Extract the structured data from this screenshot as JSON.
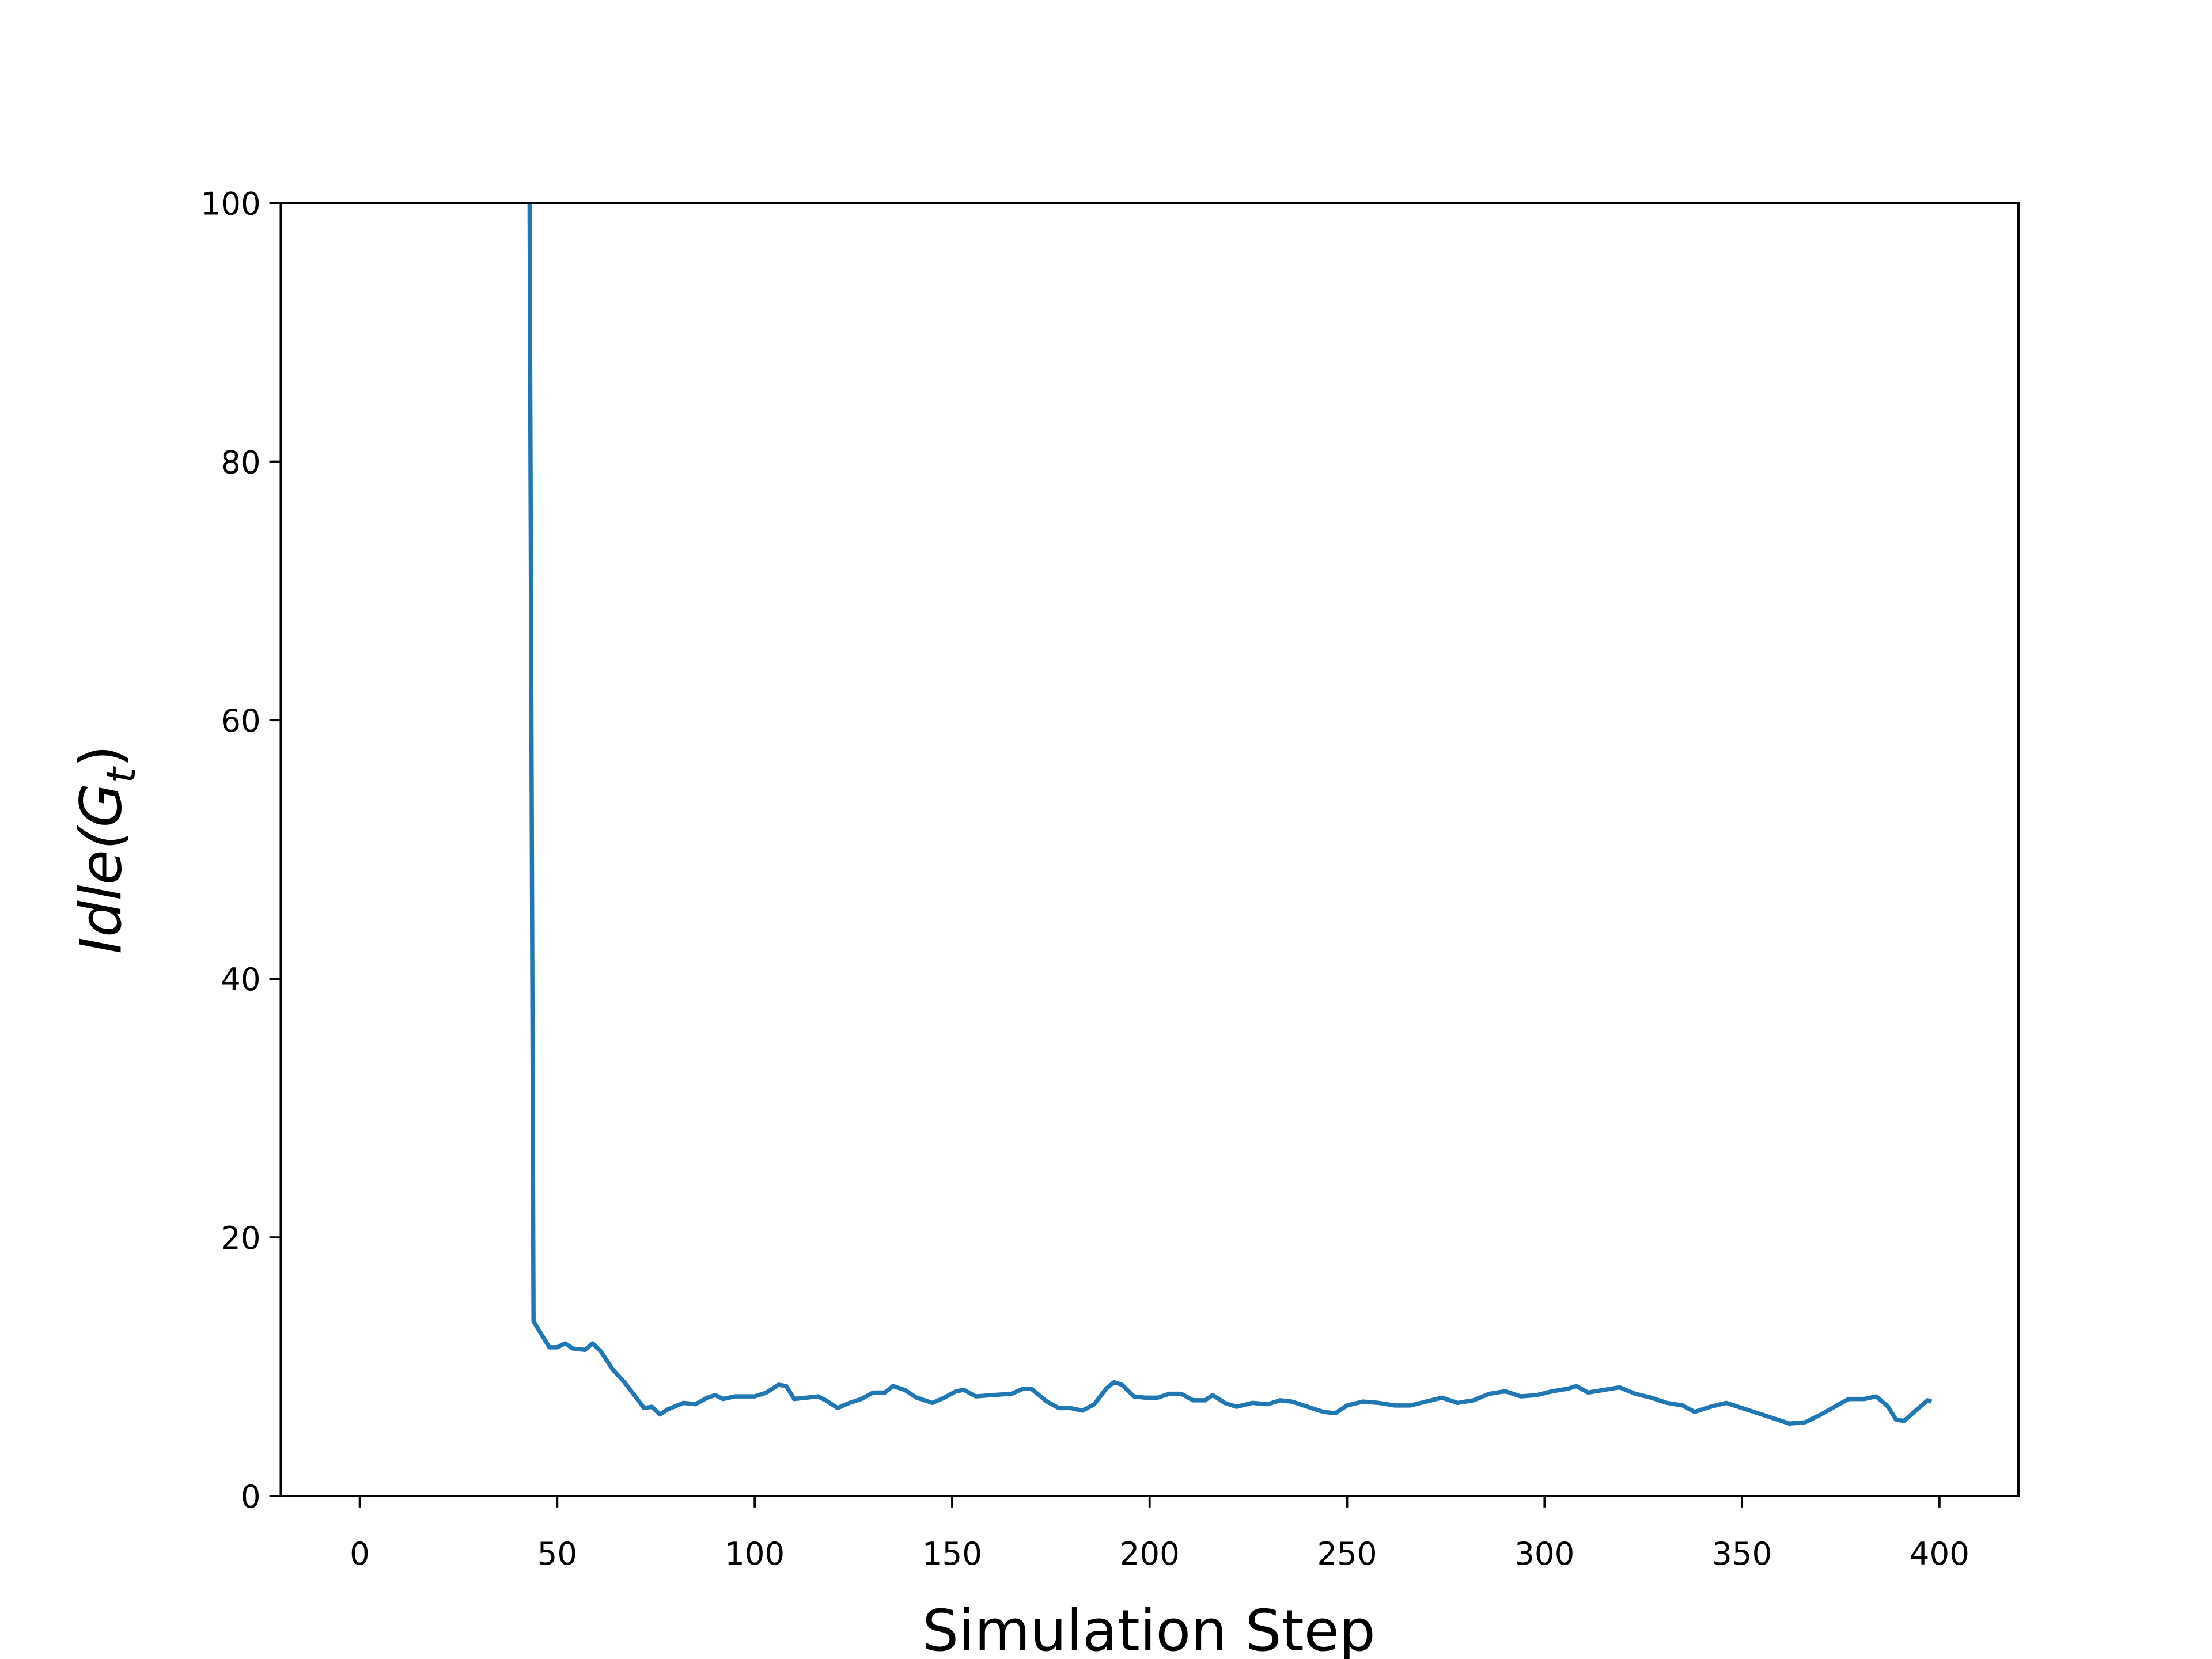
{
  "chart_data": {
    "type": "line",
    "xlabel": "Simulation Step",
    "ylabel": {
      "text": "Idle(G",
      "sub": "t",
      "close": ")"
    },
    "xlim": [
      -20,
      420
    ],
    "xticks": [
      0,
      50,
      100,
      150,
      200,
      250,
      300,
      350,
      400
    ],
    "ylim": [
      0,
      100
    ],
    "yticks": [
      0,
      20,
      40,
      60,
      80,
      100
    ],
    "series": [
      {
        "color": "#1f77b4",
        "x": [
          43,
          44,
          46,
          48,
          50,
          52,
          54,
          57,
          59,
          61,
          64,
          67,
          70,
          72,
          74,
          76,
          78,
          82,
          85,
          88,
          90,
          92,
          95,
          100,
          103,
          106,
          108,
          110,
          113,
          116,
          118,
          121,
          124,
          127,
          130,
          133,
          135,
          138,
          141,
          145,
          148,
          151,
          153,
          156,
          160,
          165,
          168,
          170,
          174,
          177,
          180,
          183,
          186,
          189,
          191,
          193,
          196,
          199,
          202,
          205,
          208,
          211,
          214,
          216,
          219,
          222,
          226,
          230,
          233,
          236,
          240,
          244,
          247,
          250,
          254,
          258,
          262,
          266,
          270,
          274,
          278,
          282,
          286,
          290,
          294,
          298,
          302,
          306,
          308,
          311,
          315,
          319,
          323,
          327,
          331,
          335,
          338,
          342,
          346,
          350,
          354,
          358,
          362,
          366,
          370,
          374,
          377,
          381,
          384,
          387,
          389,
          391,
          394,
          397,
          398
        ],
        "values": [
          100,
          13.5,
          12.5,
          11.5,
          11.5,
          11.8,
          11.4,
          11.3,
          11.8,
          11.2,
          9.8,
          8.8,
          7.6,
          6.8,
          6.9,
          6.3,
          6.7,
          7.2,
          7.1,
          7.6,
          7.8,
          7.5,
          7.7,
          7.7,
          8.0,
          8.6,
          8.5,
          7.5,
          7.6,
          7.7,
          7.4,
          6.8,
          7.2,
          7.5,
          8.0,
          8.0,
          8.5,
          8.2,
          7.6,
          7.2,
          7.6,
          8.1,
          8.2,
          7.7,
          7.8,
          7.9,
          8.3,
          8.3,
          7.3,
          6.8,
          6.8,
          6.6,
          7.1,
          8.3,
          8.8,
          8.6,
          7.7,
          7.6,
          7.6,
          7.9,
          7.9,
          7.4,
          7.4,
          7.8,
          7.2,
          6.9,
          7.2,
          7.1,
          7.4,
          7.3,
          6.9,
          6.5,
          6.4,
          7.0,
          7.3,
          7.2,
          7.0,
          7.0,
          7.3,
          7.6,
          7.2,
          7.4,
          7.9,
          8.1,
          7.7,
          7.8,
          8.1,
          8.3,
          8.5,
          8.0,
          8.2,
          8.4,
          7.9,
          7.6,
          7.2,
          7.0,
          6.5,
          6.9,
          7.2,
          6.8,
          6.4,
          6.0,
          5.6,
          5.7,
          6.3,
          7.0,
          7.5,
          7.5,
          7.7,
          6.9,
          5.9,
          5.8,
          6.6,
          7.4,
          7.3
        ]
      }
    ]
  }
}
